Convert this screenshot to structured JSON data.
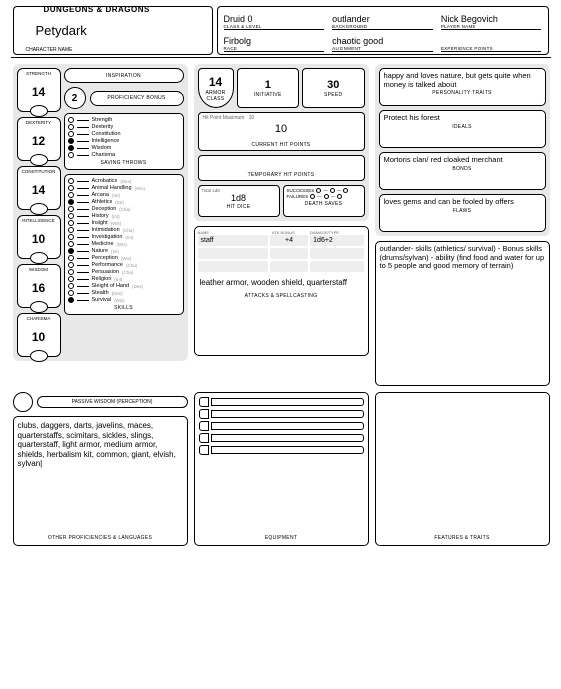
{
  "brand": "DUNGEONS & DRAGONS",
  "character_name": "Petydark",
  "character_name_label": "CHARACTER NAME",
  "header": {
    "class_level": {
      "v": "Druid 0",
      "l": "CLASS & LEVEL"
    },
    "background": {
      "v": "outlander",
      "l": "BACKGROUND"
    },
    "player": {
      "v": "Nick Begovich",
      "l": "PLAYER NAME"
    },
    "race": {
      "v": "Firbolg",
      "l": "RACE"
    },
    "alignment": {
      "v": "chaotic good",
      "l": "ALIGNMENT"
    },
    "xp": {
      "v": "",
      "l": "EXPERIENCE POINTS"
    }
  },
  "inspiration_label": "INSPIRATION",
  "prof_bonus": {
    "v": "2",
    "l": "PROFICIENCY BONUS"
  },
  "abilities": [
    {
      "name": "STRENGTH",
      "score": "14"
    },
    {
      "name": "DEXTERITY",
      "score": "12"
    },
    {
      "name": "CONSTITUTION",
      "score": "14"
    },
    {
      "name": "INTELLIGENCE",
      "score": "10"
    },
    {
      "name": "WISDOM",
      "score": "16"
    },
    {
      "name": "CHARISMA",
      "score": "10"
    }
  ],
  "saving_throws_label": "SAVING THROWS",
  "saves": [
    {
      "n": "Strength",
      "p": false
    },
    {
      "n": "Dexterity",
      "p": false
    },
    {
      "n": "Constitution",
      "p": false
    },
    {
      "n": "Intelligence",
      "p": true
    },
    {
      "n": "Wisdom",
      "p": true
    },
    {
      "n": "Charisma",
      "p": false
    }
  ],
  "skills_label": "SKILLS",
  "skills": [
    {
      "n": "Acrobatics",
      "s": "(Dex)",
      "p": false
    },
    {
      "n": "Animal Handling",
      "s": "(Wis)",
      "p": false
    },
    {
      "n": "Arcana",
      "s": "(Int)",
      "p": false
    },
    {
      "n": "Athletics",
      "s": "(Str)",
      "p": true
    },
    {
      "n": "Deception",
      "s": "(Cha)",
      "p": false
    },
    {
      "n": "History",
      "s": "(Int)",
      "p": false
    },
    {
      "n": "Insight",
      "s": "(Wis)",
      "p": false
    },
    {
      "n": "Intimidation",
      "s": "(Cha)",
      "p": false
    },
    {
      "n": "Investigation",
      "s": "(Int)",
      "p": false
    },
    {
      "n": "Medicine",
      "s": "(Wis)",
      "p": false
    },
    {
      "n": "Nature",
      "s": "(Int)",
      "p": true
    },
    {
      "n": "Perception",
      "s": "(Wis)",
      "p": false
    },
    {
      "n": "Performance",
      "s": "(Cha)",
      "p": false
    },
    {
      "n": "Persuasion",
      "s": "(Cha)",
      "p": false
    },
    {
      "n": "Religion",
      "s": "(Int)",
      "p": false
    },
    {
      "n": "Sleight of Hand",
      "s": "(Dex)",
      "p": false
    },
    {
      "n": "Stealth",
      "s": "(Dex)",
      "p": false
    },
    {
      "n": "Survival",
      "s": "(Wis)",
      "p": true
    }
  ],
  "combat": {
    "ac": {
      "v": "14",
      "l": "ARMOR CLASS"
    },
    "init": {
      "v": "1",
      "l": "INITIATIVE"
    },
    "speed": {
      "v": "30",
      "l": "SPEED"
    },
    "hp_max_l": "Hit Point Maximum",
    "hp_max": "10",
    "hp_cur": "10",
    "hp_cur_l": "CURRENT HIT POINTS",
    "thp_l": "TEMPORARY HIT POINTS",
    "hd_total_l": "Total",
    "hd_total": "1d8",
    "hd_v": "1d8",
    "hd_l": "HIT DICE",
    "ds_succ_l": "SUCCESSES",
    "ds_fail_l": "FAILURES",
    "ds_l": "DEATH SAVES"
  },
  "attacks": {
    "hdr": {
      "name": "NAME",
      "bonus": "ATK BONUS",
      "dmg": "DAMAGE/TYPE"
    },
    "rows": [
      {
        "name": "staff",
        "bonus": "+4",
        "dmg": "1d6+2"
      }
    ],
    "text": "leather armor, wooden shield, quarterstaff",
    "label": "ATTACKS & SPELLCASTING"
  },
  "traits": {
    "personality": {
      "t": "happy and loves nature, but gets quite when money is talked about",
      "l": "PERSONALITY TRAITS"
    },
    "ideals": {
      "t": "Protect his forest",
      "l": "IDEALS"
    },
    "bonds": {
      "t": "Mortoris clan/ red cloaked merchant",
      "l": "BONDS"
    },
    "flaws": {
      "t": "loves gems and can be fooled by offers",
      "l": "FLAWS"
    },
    "features": {
      "t": "outlander- skills (athletics/ survival) - Bonus skills (drums/sylvan) - ability (find food and water for up to 5 people and good memory of terrain)",
      "l": "FEATURES & TRAITS"
    }
  },
  "passive_label": "PASSIVE WISDOM (PERCEPTION)",
  "other_prof": {
    "t": "clubs, daggers, darts, javelins, maces, quarterstaffs, scimitars, sickles, slings, quarterstaff, light armor, medium armor, shields, herbalism kit, common, giant, elvish, sylvan|",
    "l": "OTHER PROFICIENCIES & LANGUAGES"
  },
  "equipment_label": "EQUIPMENT"
}
